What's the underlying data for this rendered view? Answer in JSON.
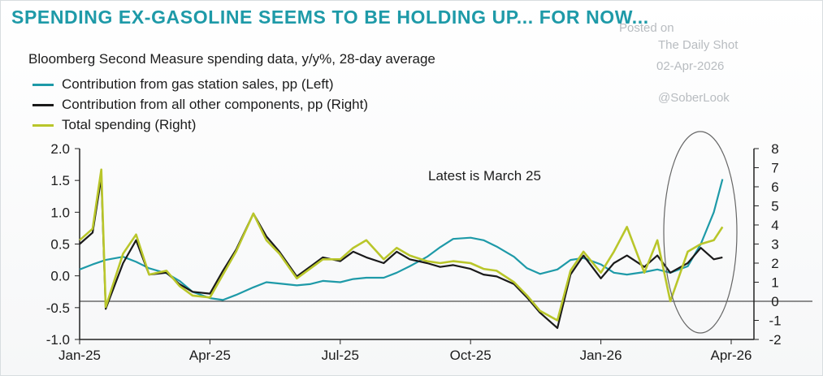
{
  "header": {
    "title": "SPENDING EX-GASOLINE SEEMS TO BE HOLDING UP... FOR NOW...",
    "subtitle": "Bloomberg Second Measure spending data, y/y%, 28-day average"
  },
  "watermark": {
    "posted": "Posted on",
    "source": "The Daily Shot",
    "date": "02-Apr-2026",
    "handle": "@SoberLook"
  },
  "chart_data": {
    "type": "line",
    "annotation": "Latest is March 25",
    "x_ticks": [
      "Jan-25",
      "Apr-25",
      "Jul-25",
      "Oct-25",
      "Jan-26",
      "Apr-26"
    ],
    "y_left": {
      "range": [
        -1.0,
        2.0
      ],
      "ticks": [
        "-1.0",
        "-0.5",
        "0.0",
        "0.5",
        "1.0",
        "1.5",
        "2.0"
      ]
    },
    "y_right": {
      "range": [
        -2,
        8
      ],
      "ticks": [
        "-2",
        "-1",
        "0",
        "1",
        "2",
        "3",
        "4",
        "5",
        "6",
        "7",
        "8"
      ]
    },
    "series": [
      {
        "name": "Contribution from gas station sales, pp (Left)",
        "axis": "left",
        "color": "#1e9aa8",
        "points": [
          [
            "Jan-25",
            0.1
          ],
          [
            "Jan-25+0.3",
            0.18
          ],
          [
            "Jan-25+0.6",
            0.25
          ],
          [
            "Feb-25",
            0.3
          ],
          [
            "Feb-25+0.3",
            0.22
          ],
          [
            "Feb-25+0.6",
            0.12
          ],
          [
            "Mar-25",
            0.04
          ],
          [
            "Mar-25+0.3",
            -0.08
          ],
          [
            "Mar-25+0.6",
            -0.25
          ],
          [
            "Apr-25",
            -0.35
          ],
          [
            "Apr-25+0.3",
            -0.38
          ],
          [
            "Apr-25+0.6",
            -0.3
          ],
          [
            "May-25",
            -0.18
          ],
          [
            "May-25+0.3",
            -0.1
          ],
          [
            "May-25+0.6",
            -0.12
          ],
          [
            "Jun-25",
            -0.15
          ],
          [
            "Jun-25+0.3",
            -0.13
          ],
          [
            "Jun-25+0.6",
            -0.08
          ],
          [
            "Jul-25",
            -0.1
          ],
          [
            "Jul-25+0.3",
            -0.05
          ],
          [
            "Jul-25+0.6",
            -0.03
          ],
          [
            "Aug-25",
            -0.03
          ],
          [
            "Aug-25+0.3",
            0.05
          ],
          [
            "Aug-25+0.6",
            0.15
          ],
          [
            "Sep-25",
            0.3
          ],
          [
            "Sep-25+0.3",
            0.45
          ],
          [
            "Sep-25+0.6",
            0.58
          ],
          [
            "Oct-25",
            0.6
          ],
          [
            "Oct-25+0.3",
            0.56
          ],
          [
            "Oct-25+0.6",
            0.46
          ],
          [
            "Nov-25",
            0.3
          ],
          [
            "Nov-25+0.3",
            0.12
          ],
          [
            "Nov-25+0.6",
            0.03
          ],
          [
            "Dec-25",
            0.1
          ],
          [
            "Dec-25+0.3",
            0.25
          ],
          [
            "Dec-25+0.6",
            0.28
          ],
          [
            "Jan-26",
            0.18
          ],
          [
            "Jan-26+0.3",
            0.05
          ],
          [
            "Jan-26+0.6",
            0.02
          ],
          [
            "Feb-26",
            0.06
          ],
          [
            "Feb-26+0.3",
            0.1
          ],
          [
            "Feb-26+0.6",
            0.05
          ],
          [
            "Mar-26",
            0.15
          ],
          [
            "Mar-26+0.3",
            0.5
          ],
          [
            "Mar-26+0.6",
            1.0
          ],
          [
            "Mar-25-26",
            1.52
          ]
        ]
      },
      {
        "name": "Contribution from all other components, pp (Right)",
        "axis": "right",
        "color": "#1a1a1a",
        "points": [
          [
            "Jan-25",
            3.0
          ],
          [
            "Jan-25+0.3",
            3.6
          ],
          [
            "Jan-25+0.5",
            6.5
          ],
          [
            "Jan-25+0.6",
            -0.4
          ],
          [
            "Feb-25",
            2.0
          ],
          [
            "Feb-25+0.3",
            3.2
          ],
          [
            "Feb-25+0.6",
            1.4
          ],
          [
            "Mar-25",
            1.5
          ],
          [
            "Mar-25+0.3",
            0.9
          ],
          [
            "Mar-25+0.6",
            0.5
          ],
          [
            "Apr-25",
            0.4
          ],
          [
            "Apr-25+0.3",
            1.6
          ],
          [
            "Apr-25+0.6",
            2.7
          ],
          [
            "May-25",
            4.6
          ],
          [
            "May-25+0.3",
            3.4
          ],
          [
            "May-25+0.6",
            2.6
          ],
          [
            "Jun-25",
            1.3
          ],
          [
            "Jun-25+0.3",
            1.8
          ],
          [
            "Jun-25+0.6",
            2.3
          ],
          [
            "Jul-25",
            2.1
          ],
          [
            "Jul-25+0.3",
            2.6
          ],
          [
            "Jul-25+0.6",
            2.3
          ],
          [
            "Aug-25",
            2.0
          ],
          [
            "Aug-25+0.3",
            2.6
          ],
          [
            "Aug-25+0.6",
            2.2
          ],
          [
            "Sep-25",
            2.0
          ],
          [
            "Sep-25+0.3",
            1.8
          ],
          [
            "Sep-25+0.6",
            1.9
          ],
          [
            "Oct-25",
            1.7
          ],
          [
            "Oct-25+0.3",
            1.4
          ],
          [
            "Oct-25+0.6",
            1.3
          ],
          [
            "Nov-25",
            0.9
          ],
          [
            "Nov-25+0.3",
            0.2
          ],
          [
            "Nov-25+0.6",
            -0.6
          ],
          [
            "Dec-25",
            -1.4
          ],
          [
            "Dec-25+0.3",
            1.4
          ],
          [
            "Dec-25+0.6",
            2.4
          ],
          [
            "Jan-26",
            1.2
          ],
          [
            "Jan-26+0.3",
            2.0
          ],
          [
            "Jan-26+0.6",
            2.4
          ],
          [
            "Feb-26",
            1.8
          ],
          [
            "Feb-26+0.3",
            2.4
          ],
          [
            "Feb-26+0.6",
            1.5
          ],
          [
            "Mar-26",
            2.0
          ],
          [
            "Mar-26+0.3",
            2.8
          ],
          [
            "Mar-26+0.6",
            2.2
          ],
          [
            "Mar-25-26",
            2.3
          ]
        ]
      },
      {
        "name": "Total spending (Right)",
        "axis": "right",
        "color": "#b9c62a",
        "points": [
          [
            "Jan-25",
            3.2
          ],
          [
            "Jan-25+0.3",
            3.8
          ],
          [
            "Jan-25+0.5",
            6.9
          ],
          [
            "Jan-25+0.6",
            -0.3
          ],
          [
            "Feb-25",
            2.5
          ],
          [
            "Feb-25+0.3",
            3.5
          ],
          [
            "Feb-25+0.6",
            1.4
          ],
          [
            "Mar-25",
            1.6
          ],
          [
            "Mar-25+0.3",
            0.8
          ],
          [
            "Mar-25+0.6",
            0.3
          ],
          [
            "Apr-25",
            0.2
          ],
          [
            "Apr-25+0.3",
            1.4
          ],
          [
            "Apr-25+0.6",
            2.6
          ],
          [
            "May-25",
            4.6
          ],
          [
            "May-25+0.3",
            3.2
          ],
          [
            "May-25+0.6",
            2.5
          ],
          [
            "Jun-25",
            1.2
          ],
          [
            "Jun-25+0.3",
            1.7
          ],
          [
            "Jun-25+0.6",
            2.2
          ],
          [
            "Jul-25",
            2.2
          ],
          [
            "Jul-25+0.3",
            2.8
          ],
          [
            "Jul-25+0.6",
            3.2
          ],
          [
            "Aug-25",
            2.2
          ],
          [
            "Aug-25+0.3",
            2.8
          ],
          [
            "Aug-25+0.6",
            2.4
          ],
          [
            "Sep-25",
            2.1
          ],
          [
            "Sep-25+0.3",
            2.0
          ],
          [
            "Sep-25+0.6",
            2.1
          ],
          [
            "Oct-25",
            2.0
          ],
          [
            "Oct-25+0.3",
            1.7
          ],
          [
            "Oct-25+0.6",
            1.6
          ],
          [
            "Nov-25",
            1.0
          ],
          [
            "Nov-25+0.3",
            0.3
          ],
          [
            "Nov-25+0.6",
            -0.5
          ],
          [
            "Dec-25",
            -1.0
          ],
          [
            "Dec-25+0.3",
            1.6
          ],
          [
            "Dec-25+0.6",
            2.6
          ],
          [
            "Jan-26",
            1.5
          ],
          [
            "Jan-26+0.3",
            2.6
          ],
          [
            "Jan-26+0.6",
            3.9
          ],
          [
            "Feb-26",
            1.5
          ],
          [
            "Feb-26+0.3",
            3.2
          ],
          [
            "Feb-26+0.6",
            0.0
          ],
          [
            "Mar-26",
            2.6
          ],
          [
            "Mar-26+0.3",
            3.0
          ],
          [
            "Mar-26+0.6",
            3.2
          ],
          [
            "Mar-25-26",
            3.9
          ]
        ]
      }
    ],
    "grid": false,
    "zero_line_left": -0.4
  }
}
